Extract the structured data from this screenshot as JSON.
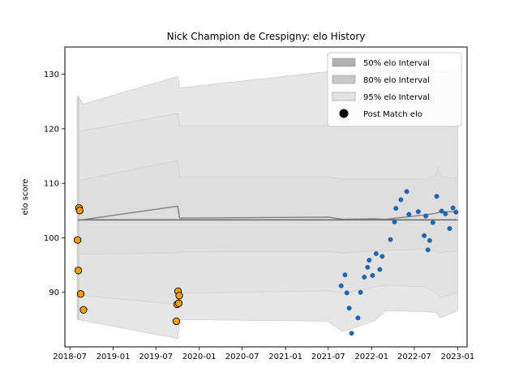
{
  "chart_data": {
    "type": "scatter",
    "title": "Nick Champion de Crespigny: elo History",
    "xlabel": "",
    "ylabel": "elo score",
    "x_ticks": [
      "2018-07",
      "2019-01",
      "2019-07",
      "2020-01",
      "2020-07",
      "2021-01",
      "2021-07",
      "2022-01",
      "2022-07",
      "2023-01"
    ],
    "y_ticks": [
      90,
      100,
      110,
      120,
      130
    ],
    "xlim": [
      "2018-06-10",
      "2023-02-10"
    ],
    "ylim": [
      80,
      135
    ],
    "grid": false,
    "legend_position": "top-right",
    "legend": [
      {
        "label": "50% elo Interval",
        "kind": "band",
        "color": "#b0b0b0"
      },
      {
        "label": "80% elo Interval",
        "kind": "band",
        "color": "#c8c8c8"
      },
      {
        "label": "95% elo Interval",
        "kind": "band",
        "color": "#e2e2e2"
      },
      {
        "label": "Post Match elo",
        "kind": "marker",
        "color": "#000000"
      }
    ],
    "mean_line": {
      "color": "#808080",
      "points": [
        [
          "2018-08-05",
          103.2
        ],
        [
          "2019-10-01",
          105.8
        ],
        [
          "2019-10-10",
          103.6
        ],
        [
          "2021-07-01",
          103.8
        ],
        [
          "2021-09-01",
          103.4
        ],
        [
          "2022-01-15",
          103.5
        ],
        [
          "2022-03-01",
          103.4
        ],
        [
          "2022-08-15",
          104.2
        ],
        [
          "2022-10-01",
          104.5
        ],
        [
          "2022-10-20",
          104.8
        ],
        [
          "2023-01-01",
          104.8
        ]
      ]
    },
    "baseline_line": {
      "color": "#707070",
      "points": [
        [
          "2018-08-05",
          103.3
        ],
        [
          "2023-01-01",
          103.3
        ]
      ]
    },
    "bands": [
      {
        "name": "95% elo Interval",
        "color": "#e6e6e6",
        "upper": [
          [
            "2018-08-05",
            126
          ],
          [
            "2018-08-25",
            124.5
          ],
          [
            "2019-10-02",
            129.6
          ],
          [
            "2019-10-10",
            127.5
          ],
          [
            "2021-07-01",
            130.5
          ],
          [
            "2023-01-01",
            130.5
          ]
        ],
        "lower": [
          [
            "2018-08-05",
            85
          ],
          [
            "2019-10-02",
            81.5
          ],
          [
            "2019-10-10",
            85
          ],
          [
            "2021-07-01",
            84.7
          ],
          [
            "2021-09-01",
            82.8
          ],
          [
            "2022-01-15",
            84.8
          ],
          [
            "2022-03-01",
            86.6
          ],
          [
            "2022-08-15",
            86.5
          ],
          [
            "2022-10-01",
            86.3
          ],
          [
            "2022-10-20",
            85.3
          ],
          [
            "2023-01-01",
            86.6
          ]
        ]
      },
      {
        "name": "80% elo Interval",
        "color": "#e2e2e2",
        "upper": [
          [
            "2018-08-05",
            119.5
          ],
          [
            "2019-10-02",
            122.8
          ],
          [
            "2019-10-10",
            120.5
          ],
          [
            "2021-07-01",
            120.5
          ],
          [
            "2023-01-01",
            120.5
          ]
        ],
        "lower": [
          [
            "2018-08-05",
            89.5
          ],
          [
            "2019-10-02",
            87.8
          ],
          [
            "2019-10-10",
            89.8
          ],
          [
            "2021-07-01",
            90.3
          ],
          [
            "2021-09-01",
            89.8
          ],
          [
            "2022-01-15",
            91.0
          ],
          [
            "2022-03-01",
            91.3
          ],
          [
            "2022-08-15",
            91.0
          ],
          [
            "2022-10-01",
            90.0
          ],
          [
            "2022-10-20",
            89.0
          ],
          [
            "2023-01-01",
            90.0
          ]
        ]
      },
      {
        "name": "50% elo Interval",
        "color": "#dedede",
        "upper": [
          [
            "2018-08-05",
            110.5
          ],
          [
            "2019-10-02",
            114.2
          ],
          [
            "2019-10-10",
            111.2
          ],
          [
            "2021-07-01",
            111.2
          ],
          [
            "2021-09-01",
            110.8
          ],
          [
            "2022-01-15",
            110.8
          ],
          [
            "2022-08-15",
            110.8
          ],
          [
            "2022-10-01",
            111.5
          ],
          [
            "2022-10-10",
            112.8
          ],
          [
            "2022-10-20",
            111.2
          ],
          [
            "2023-01-01",
            111.0
          ]
        ],
        "lower": [
          [
            "2018-08-05",
            97
          ],
          [
            "2019-10-02",
            97.2
          ],
          [
            "2019-10-10",
            97.4
          ],
          [
            "2021-07-01",
            97.5
          ],
          [
            "2021-09-01",
            97.2
          ],
          [
            "2022-01-15",
            97.6
          ],
          [
            "2022-08-15",
            97.9
          ],
          [
            "2022-10-01",
            97.5
          ],
          [
            "2022-10-20",
            97.3
          ],
          [
            "2023-01-01",
            97.6
          ]
        ]
      }
    ],
    "series": [
      {
        "name": "Post Match elo",
        "color": "#f5a000",
        "edge_color": "#000000",
        "marker_size": "large",
        "points": [
          [
            "2018-08-03",
            99.6
          ],
          [
            "2018-08-06",
            94.0
          ],
          [
            "2018-08-09",
            105.5
          ],
          [
            "2018-08-12",
            105.0
          ],
          [
            "2018-08-16",
            89.7
          ],
          [
            "2018-08-28",
            86.8
          ],
          [
            "2019-09-26",
            84.7
          ],
          [
            "2019-09-29",
            87.8
          ],
          [
            "2019-10-03",
            90.2
          ],
          [
            "2019-10-06",
            88.0
          ],
          [
            "2019-10-08",
            89.4
          ]
        ]
      },
      {
        "name": "",
        "color": "#2166ac",
        "edge_color": "#2166ac",
        "marker_size": "small",
        "points": [
          [
            "2021-08-25",
            91.2
          ],
          [
            "2021-09-10",
            93.2
          ],
          [
            "2021-09-18",
            89.9
          ],
          [
            "2021-09-28",
            87.1
          ],
          [
            "2021-10-08",
            82.5
          ],
          [
            "2021-11-04",
            85.3
          ],
          [
            "2021-11-15",
            90.0
          ],
          [
            "2021-12-01",
            92.8
          ],
          [
            "2021-12-15",
            94.6
          ],
          [
            "2021-12-22",
            95.9
          ],
          [
            "2022-01-05",
            93.1
          ],
          [
            "2022-01-20",
            97.1
          ],
          [
            "2022-02-05",
            94.2
          ],
          [
            "2022-02-15",
            96.6
          ],
          [
            "2022-03-22",
            99.7
          ],
          [
            "2022-04-08",
            102.9
          ],
          [
            "2022-04-14",
            105.4
          ],
          [
            "2022-05-05",
            107.0
          ],
          [
            "2022-05-30",
            108.5
          ],
          [
            "2022-06-08",
            104.3
          ],
          [
            "2022-07-18",
            104.8
          ],
          [
            "2022-08-12",
            100.4
          ],
          [
            "2022-08-19",
            104.0
          ],
          [
            "2022-08-28",
            97.8
          ],
          [
            "2022-09-04",
            99.5
          ],
          [
            "2022-09-18",
            102.8
          ],
          [
            "2022-10-04",
            107.6
          ],
          [
            "2022-10-25",
            104.9
          ],
          [
            "2022-11-10",
            104.4
          ],
          [
            "2022-11-28",
            101.7
          ],
          [
            "2022-12-12",
            105.5
          ],
          [
            "2022-12-25",
            104.7
          ]
        ]
      }
    ]
  }
}
